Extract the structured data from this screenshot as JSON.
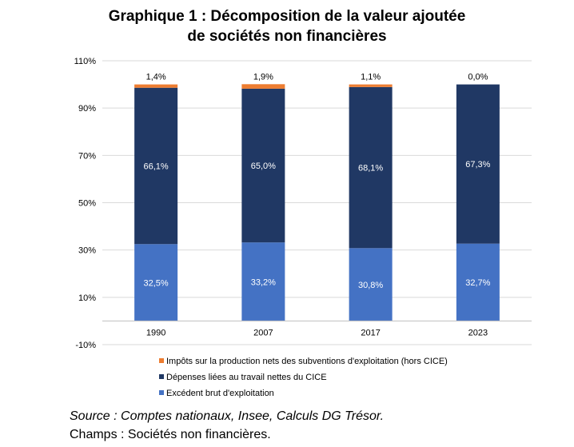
{
  "chart_data": {
    "type": "bar",
    "stacked": true,
    "title_lines": [
      "Graphique 1 : Décomposition de la valeur ajoutée",
      "de sociétés non financières"
    ],
    "categories": [
      "1990",
      "2007",
      "2017",
      "2023"
    ],
    "ylim": [
      -10,
      110
    ],
    "yticks": [
      -10,
      10,
      30,
      50,
      70,
      90,
      110
    ],
    "ytick_labels": [
      "-10%",
      "10%",
      "30%",
      "50%",
      "70%",
      "90%",
      "110%"
    ],
    "grid": true,
    "legend_position": "bottom",
    "series": [
      {
        "name": "Excédent brut d'exploitation",
        "color": "#4472c4",
        "values": [
          32.5,
          33.2,
          30.8,
          32.7
        ],
        "labels": [
          "32,5%",
          "33,2%",
          "30,8%",
          "32,7%"
        ]
      },
      {
        "name": "Dépenses liées au travail nettes du CICE",
        "color": "#203864",
        "values": [
          66.1,
          65.0,
          68.1,
          67.3
        ],
        "labels": [
          "66,1%",
          "65,0%",
          "68,1%",
          "67,3%"
        ]
      },
      {
        "name": "Impôts sur la production nets des subventions d'exploitation (hors CICE)",
        "color": "#ed7d31",
        "values": [
          1.4,
          1.9,
          1.1,
          0.0
        ],
        "labels": [
          "1,4%",
          "1,9%",
          "1,1%",
          "0,0%"
        ]
      }
    ]
  },
  "footer": {
    "source": "Source : Comptes nationaux, Insee, Calculs DG Trésor.",
    "scope": "Champs : Sociétés non financières."
  }
}
